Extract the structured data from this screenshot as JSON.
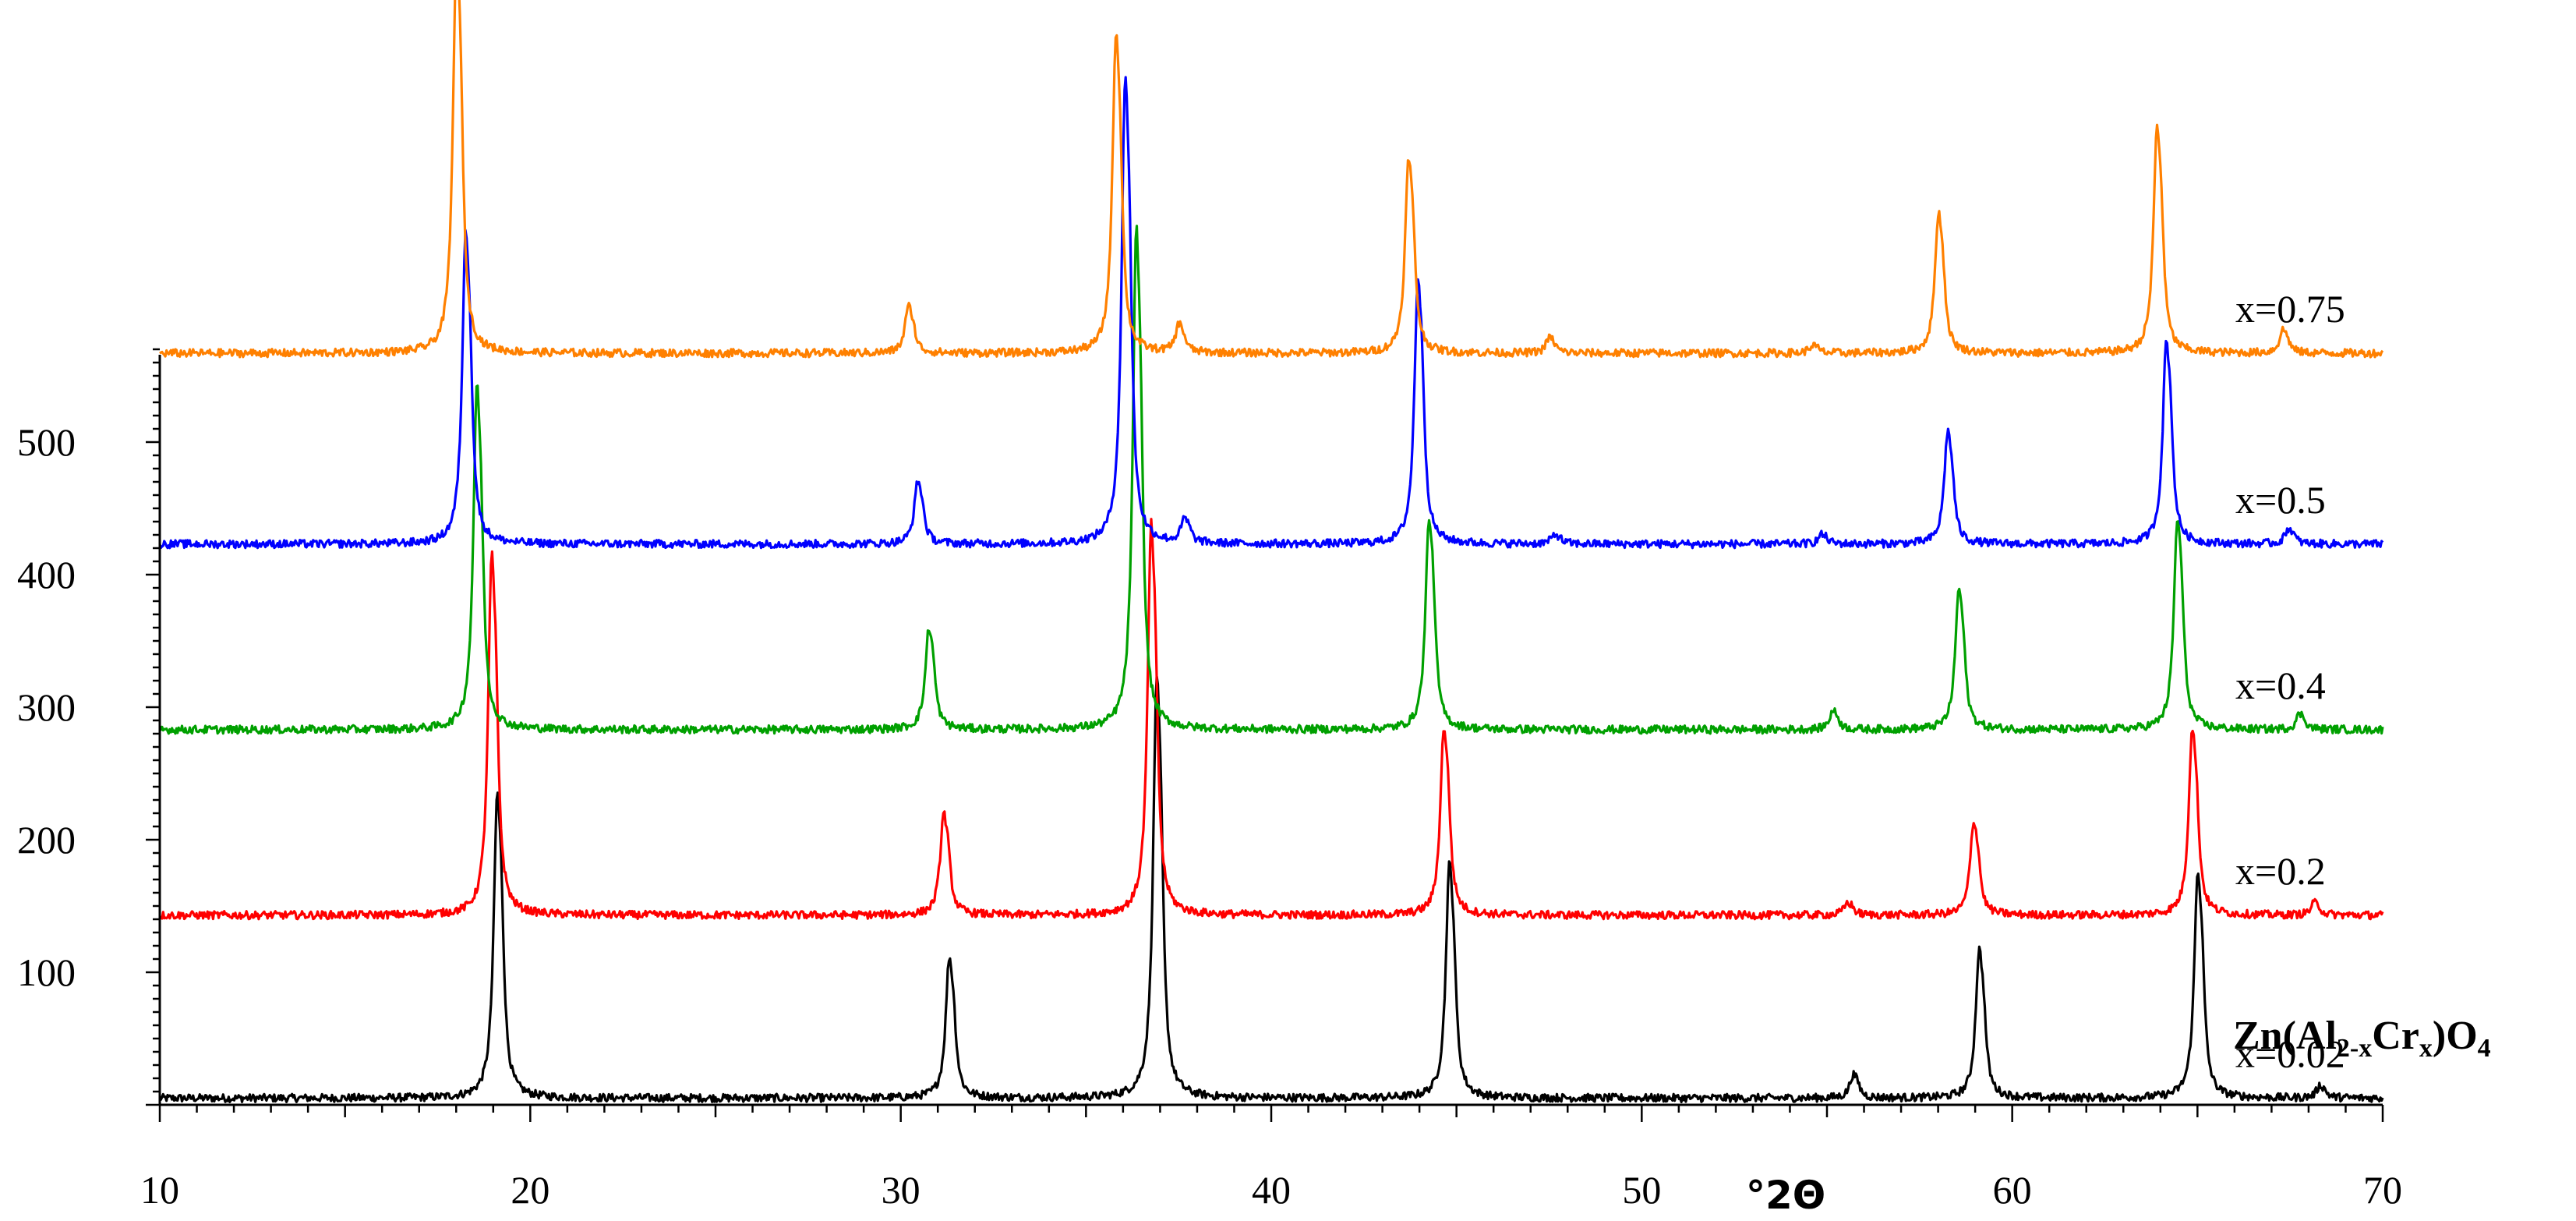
{
  "chart_data": {
    "type": "line",
    "title": "",
    "xlabel": "°2Θ",
    "ylabel": "",
    "xlim": [
      10,
      70
    ],
    "ylim": [
      0,
      570
    ],
    "x_ticks": [
      10,
      20,
      30,
      40,
      50,
      60,
      70
    ],
    "x_tick_labels": [
      "10",
      "20",
      "30",
      "40",
      "50",
      "60",
      "70"
    ],
    "y_ticks": [
      100,
      200,
      300,
      400,
      500
    ],
    "y_tick_labels": [
      "100",
      "200",
      "300",
      "400",
      "500"
    ],
    "grid": false,
    "legend": "none",
    "formula": {
      "base": "Zn(Al",
      "sub1": "2-x",
      "mid": "Cr",
      "sub2": "x",
      "end": ")O",
      "sub3": "4"
    },
    "series": [
      {
        "name": "x=0.02",
        "color": "#000000",
        "baseline": 5,
        "shift": 0.0,
        "peaks": [
          [
            19.1,
            195
          ],
          [
            31.3,
            90
          ],
          [
            36.9,
            270
          ],
          [
            44.8,
            150
          ],
          [
            55.7,
            15
          ],
          [
            59.1,
            95
          ],
          [
            65.0,
            145
          ],
          [
            68.3,
            8
          ]
        ]
      },
      {
        "name": "x=0.2",
        "color": "#ff0000",
        "baseline": 143,
        "shift": -0.15,
        "peaks": [
          [
            19.1,
            230
          ],
          [
            31.3,
            65
          ],
          [
            36.9,
            250
          ],
          [
            44.8,
            120
          ],
          [
            55.7,
            8
          ],
          [
            59.1,
            60
          ],
          [
            65.0,
            120
          ],
          [
            68.3,
            8
          ]
        ]
      },
      {
        "name": "x=0.4",
        "color": "#00a000",
        "baseline": 283,
        "shift": -0.55,
        "peaks": [
          [
            19.1,
            220
          ],
          [
            31.3,
            65
          ],
          [
            36.9,
            320
          ],
          [
            44.8,
            135
          ],
          [
            55.7,
            12
          ],
          [
            59.1,
            90
          ],
          [
            65.0,
            135
          ],
          [
            68.3,
            10
          ]
        ]
      },
      {
        "name": "x=0.5",
        "color": "#0000ff",
        "baseline": 423,
        "shift": -0.85,
        "peaks": [
          [
            19.1,
            200
          ],
          [
            31.3,
            40
          ],
          [
            36.9,
            300
          ],
          [
            38.5,
            15
          ],
          [
            44.8,
            170
          ],
          [
            48.5,
            6
          ],
          [
            55.7,
            6
          ],
          [
            59.1,
            72
          ],
          [
            65.0,
            130
          ],
          [
            68.3,
            10
          ]
        ]
      },
      {
        "name": "x=0.75",
        "color": "#ff8000",
        "baseline": 567,
        "shift": -1.1,
        "peaks": [
          [
            19.1,
            260
          ],
          [
            31.3,
            30
          ],
          [
            36.9,
            205
          ],
          [
            38.6,
            18
          ],
          [
            44.8,
            125
          ],
          [
            48.6,
            10
          ],
          [
            55.7,
            5
          ],
          [
            59.1,
            90
          ],
          [
            65.0,
            145
          ],
          [
            68.4,
            15
          ]
        ]
      }
    ]
  }
}
